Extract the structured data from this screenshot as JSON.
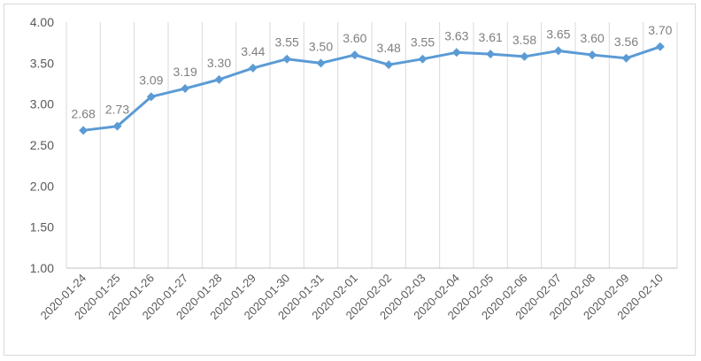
{
  "chart_data": {
    "type": "line",
    "categories": [
      "2020-01-24",
      "2020-01-25",
      "2020-01-26",
      "2020-01-27",
      "2020-01-28",
      "2020-01-29",
      "2020-01-30",
      "2020-01-31",
      "2020-02-01",
      "2020-02-02",
      "2020-02-03",
      "2020-02-04",
      "2020-02-05",
      "2020-02-06",
      "2020-02-07",
      "2020-02-08",
      "2020-02-09",
      "2020-02-10"
    ],
    "values": [
      2.68,
      2.73,
      3.09,
      3.19,
      3.3,
      3.44,
      3.55,
      3.5,
      3.6,
      3.48,
      3.55,
      3.63,
      3.61,
      3.58,
      3.65,
      3.6,
      3.56,
      3.7
    ],
    "data_labels": [
      "2.68",
      "2.73",
      "3.09",
      "3.19",
      "3.30",
      "3.44",
      "3.55",
      "3.50",
      "3.60",
      "3.48",
      "3.55",
      "3.63",
      "3.61",
      "3.58",
      "3.65",
      "3.60",
      "3.56",
      "3.70"
    ],
    "y_ticks": [
      "1.00",
      "1.50",
      "2.00",
      "2.50",
      "3.00",
      "3.50",
      "4.00"
    ],
    "ylim": [
      1.0,
      4.0
    ],
    "title": "",
    "xlabel": "",
    "ylabel": "",
    "grid": "vertical",
    "legend": "none",
    "colors": {
      "line": "#5b9bd5",
      "grid": "#d9d9d9",
      "axis": "#bfbfbf"
    }
  }
}
